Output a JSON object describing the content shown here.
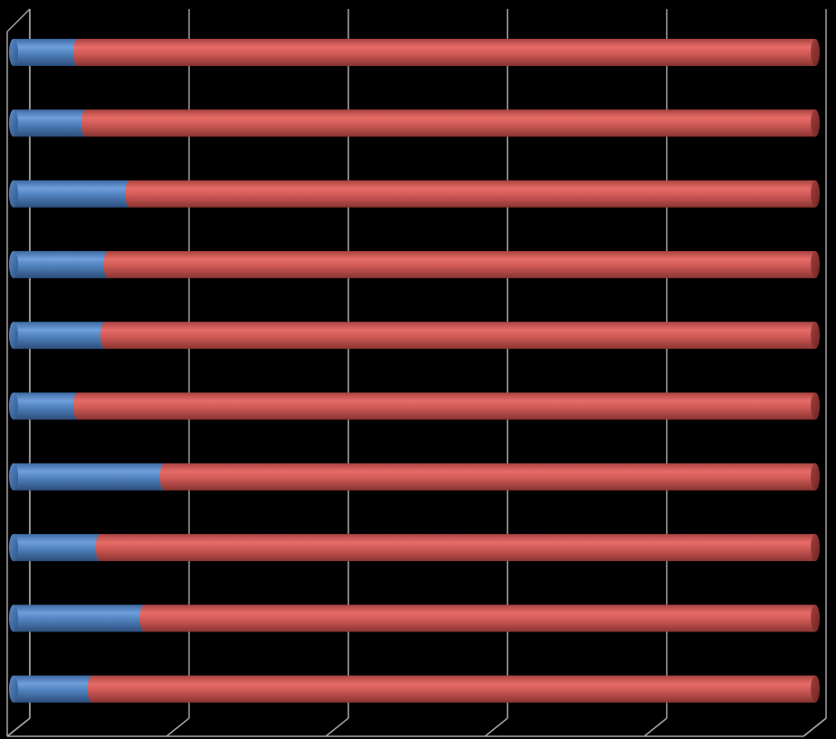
{
  "chart_data": {
    "type": "bar",
    "orientation": "horizontal",
    "stacked": "100%",
    "style": "3d-cylinder",
    "title": "",
    "xlabel": "",
    "ylabel": "",
    "xlim": [
      0,
      1
    ],
    "grid": true,
    "legend": "none",
    "categories": [
      "",
      "",
      "",
      "",
      "",
      "",
      "",
      "",
      "",
      ""
    ],
    "series": [
      {
        "color": "#4f81bd",
        "values": [
          0.08,
          0.09,
          0.145,
          0.118,
          0.114,
          0.08,
          0.188,
          0.108,
          0.163,
          0.098
        ]
      },
      {
        "color": "#c0504d",
        "values": [
          0.92,
          0.91,
          0.855,
          0.882,
          0.886,
          0.92,
          0.812,
          0.892,
          0.837,
          0.902
        ]
      }
    ],
    "colors": {
      "background": "#000000",
      "grid": "#a6a6a6",
      "series1": "#4f81bd",
      "series2": "#c0504d"
    }
  }
}
